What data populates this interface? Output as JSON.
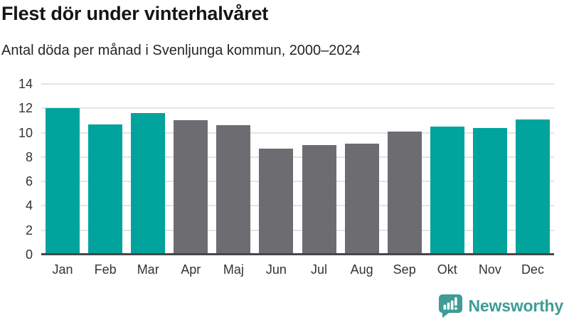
{
  "header": {
    "title": "Flest dör under vinterhalvåret",
    "subtitle": "Antal döda per månad i Svenljunga kommun, 2000–2024"
  },
  "chart_data": {
    "type": "bar",
    "title": "Flest dör under vinterhalvåret",
    "subtitle": "Antal döda per månad i Svenljunga kommun, 2000–2024",
    "categories": [
      "Jan",
      "Feb",
      "Mar",
      "Apr",
      "Maj",
      "Jun",
      "Jul",
      "Aug",
      "Sep",
      "Okt",
      "Nov",
      "Dec"
    ],
    "values": [
      12.0,
      10.7,
      11.6,
      11.0,
      10.6,
      8.7,
      9.0,
      9.1,
      10.1,
      10.5,
      10.4,
      11.1
    ],
    "bar_color_keys": [
      "teal",
      "teal",
      "teal",
      "gray",
      "gray",
      "gray",
      "gray",
      "gray",
      "gray",
      "teal",
      "teal",
      "teal"
    ],
    "colors": {
      "teal": "#00a49c",
      "gray": "#6d6c70"
    },
    "xlabel": "",
    "ylabel": "",
    "ylim": [
      0,
      14
    ],
    "yticks": [
      0,
      2,
      4,
      6,
      8,
      10,
      12,
      14
    ],
    "grid": true,
    "legend": "none"
  },
  "footer": {
    "logo_text": "Newsworthy",
    "logo_color": "#3f9c96",
    "logo_icon": "bar-chart-speech-bubble-icon"
  }
}
